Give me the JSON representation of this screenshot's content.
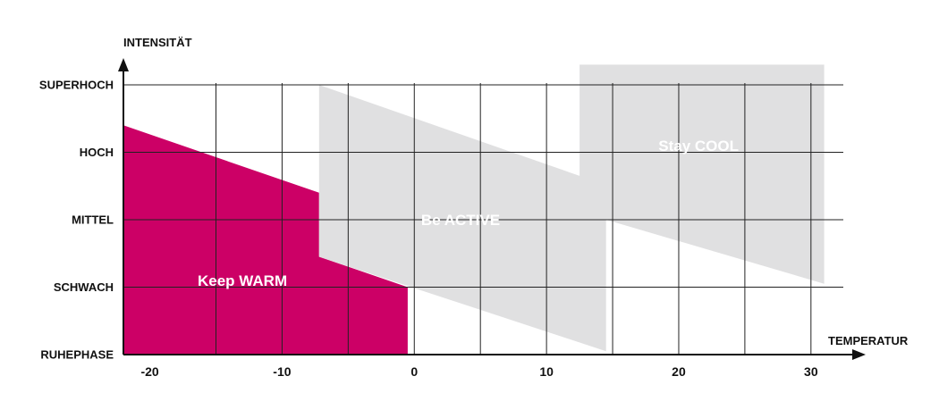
{
  "chart_data": {
    "type": "area",
    "title": "",
    "ylabel": "INTENSITÄT",
    "xlabel": "TEMPERATUR",
    "xlim": [
      -22,
      31.5
    ],
    "ylim": [
      0,
      4
    ],
    "x_ticks": [
      -20,
      -10,
      0,
      10,
      20,
      30
    ],
    "x_tick_labels": [
      "-20",
      "-10",
      "0",
      "10",
      "20",
      "30"
    ],
    "x_grid": [
      -15,
      -10,
      -5,
      0,
      5,
      10,
      15,
      20,
      25,
      30
    ],
    "y_levels": [
      "RUHEPHASE",
      "SCHWACH",
      "MITTEL",
      "HOCH",
      "SUPERHOCH"
    ],
    "grid": true,
    "regions": [
      {
        "name": "Keep WARM",
        "color": "#cc0066",
        "label_pos": [
          -13,
          1.1
        ],
        "polygon": [
          [
            -22,
            0
          ],
          [
            -22,
            3.4
          ],
          [
            -7.2,
            2.4
          ],
          [
            -7.2,
            1.45
          ],
          [
            -0.5,
            1.0
          ],
          [
            -0.5,
            0
          ]
        ]
      },
      {
        "name": "Be ACTIVE",
        "color": "#e0e0e1",
        "label_pos": [
          3.5,
          2.0
        ],
        "polygon": [
          [
            -7.2,
            1.45
          ],
          [
            -7.2,
            4.0
          ],
          [
            12.5,
            2.65
          ],
          [
            12.5,
            4.3
          ],
          [
            31,
            4.3
          ],
          [
            31,
            1.05
          ],
          [
            14.5,
            2.0
          ],
          [
            14.5,
            0.05
          ]
        ]
      },
      {
        "name": "Stay COOL",
        "color": "#e0e0e1",
        "label_pos": [
          21.5,
          3.1
        ],
        "polygon": []
      }
    ]
  }
}
